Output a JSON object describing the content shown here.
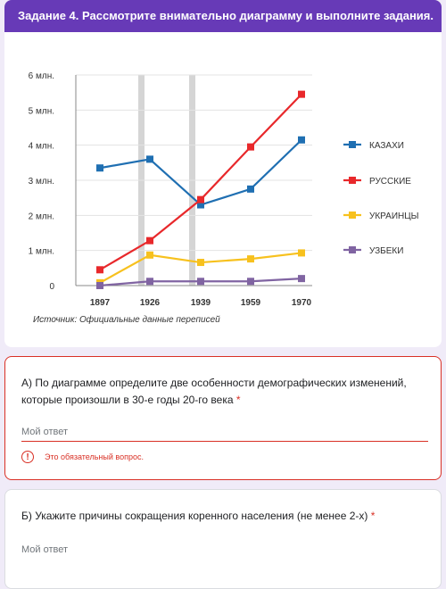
{
  "header": {
    "title": "Задание 4. Рассмотрите внимательно диаграмму и выполните задания."
  },
  "chart_data": {
    "type": "line",
    "x": [
      "1897",
      "1926",
      "1939",
      "1959",
      "1970"
    ],
    "y_ticks": [
      "0",
      "1 млн.",
      "2 млн.",
      "3 млн.",
      "4 млн.",
      "5 млн.",
      "6 млн."
    ],
    "ylim": [
      0,
      6
    ],
    "highlight_bands": [
      {
        "from": "1926",
        "to": "1939"
      }
    ],
    "series": [
      {
        "name": "КАЗАХИ",
        "color": "#1f6fb2",
        "values": [
          3.35,
          3.6,
          2.3,
          2.75,
          4.15
        ]
      },
      {
        "name": "РУССКИЕ",
        "color": "#e8282b",
        "values": [
          0.45,
          1.28,
          2.45,
          3.95,
          5.45
        ]
      },
      {
        "name": "УКРАИНЦЫ",
        "color": "#f7c11e",
        "values": [
          0.08,
          0.87,
          0.66,
          0.76,
          0.93
        ]
      },
      {
        "name": "УЗБЕКИ",
        "color": "#8064a2",
        "values": [
          0.0,
          0.12,
          0.12,
          0.12,
          0.2
        ]
      }
    ],
    "source": "Источник: Официальные данные переписей",
    "legend": "right"
  },
  "questions": [
    {
      "text": "А) По диаграмме определите две особенности демографических изменений, которые произошли в 30-е годы 20-го века",
      "asterisk": "*",
      "placeholder": "Мой ответ",
      "error": "Это обязательный вопрос."
    },
    {
      "text": "Б) Укажите причины сокращения коренного населения (не менее 2-х)",
      "asterisk": "*",
      "placeholder": "Мой ответ"
    }
  ],
  "icons": {
    "error": "error-exclamation-icon",
    "error_glyph": "!"
  }
}
